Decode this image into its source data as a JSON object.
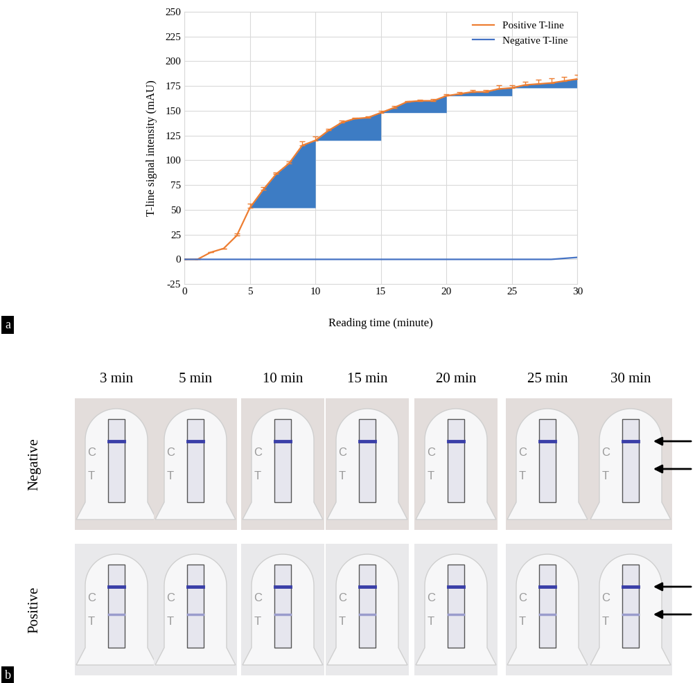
{
  "chart_data": {
    "type": "line",
    "x": [
      0,
      1,
      2,
      3,
      4,
      5,
      6,
      7,
      8,
      9,
      10,
      11,
      12,
      13,
      14,
      15,
      16,
      17,
      18,
      19,
      20,
      21,
      22,
      23,
      24,
      25,
      26,
      27,
      28,
      29,
      30
    ],
    "series": [
      {
        "name": "Positive T-line",
        "color": "#ed7d31",
        "line_style": "solid",
        "values": [
          0,
          0,
          7,
          11,
          24,
          52,
          70,
          86,
          97,
          115,
          120,
          130,
          138,
          142,
          143,
          148,
          153,
          159,
          160,
          160,
          165,
          167,
          169,
          169,
          172,
          173,
          176,
          177,
          178,
          180,
          182
        ],
        "errors": [
          0,
          0,
          0,
          0,
          2,
          4,
          3,
          2,
          2,
          4,
          4,
          2,
          2,
          1,
          1,
          2,
          2,
          1,
          1,
          2,
          2,
          2,
          2,
          2,
          4,
          3,
          3,
          4,
          5,
          4,
          4
        ]
      },
      {
        "name": "Negative T-line",
        "color": "#4472c4",
        "line_style": "solid",
        "values": [
          0,
          0,
          0,
          0,
          0,
          0,
          0,
          0,
          0,
          0,
          0,
          0,
          0,
          0,
          0,
          0,
          0,
          0,
          0,
          0,
          0,
          0,
          0,
          0,
          0,
          0,
          0,
          0,
          0,
          1,
          2
        ]
      }
    ],
    "shaded_intervals": [
      5,
      10,
      15,
      20,
      25,
      30
    ],
    "shade_color": "#3d7cc4",
    "x_label": "Reading time (minute)",
    "y_label": "T-line signal intensity (mAU)",
    "xlim": [
      0,
      30
    ],
    "xticks": [
      0,
      5,
      10,
      15,
      20,
      25,
      30
    ],
    "ylim": [
      -25,
      250
    ],
    "yticks": [
      -25,
      0,
      25,
      50,
      75,
      100,
      125,
      150,
      175,
      200,
      225,
      250
    ],
    "grid": true,
    "legend": "upper right"
  },
  "panel_labels": [
    "a",
    "b"
  ],
  "photos": {
    "columns": [
      "3 min",
      "5 min",
      "10 min",
      "15 min",
      "20 min",
      "25 min",
      "30 min"
    ],
    "rows": [
      "Negative",
      "Positive"
    ],
    "strip_labels": [
      "C",
      "T"
    ],
    "test_line_visible": [
      false,
      true
    ]
  }
}
